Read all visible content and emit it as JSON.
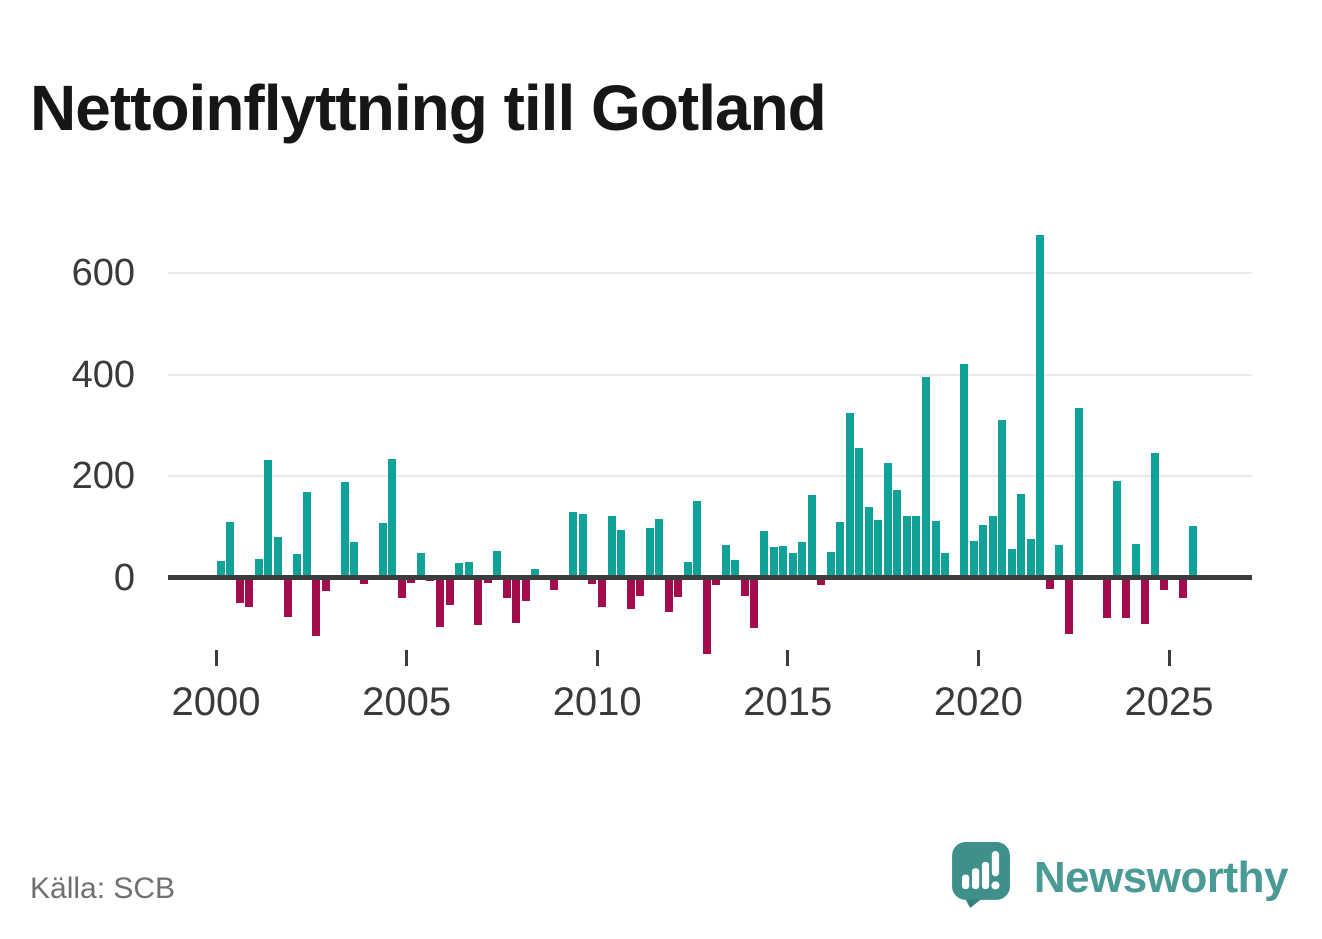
{
  "header": {
    "title": "Nettoinflyttning till Gotland"
  },
  "footer": {
    "source": "Källa: SCB",
    "brand": "Newsworthy"
  },
  "chart_data": {
    "type": "bar",
    "title": "Nettoinflyttning till Gotland",
    "frequency": "quarterly",
    "start_period": "2000 Q1",
    "end_period": "2025 Q3",
    "x_tick_labels": [
      "2000",
      "2005",
      "2010",
      "2015",
      "2020",
      "2025"
    ],
    "y_tick_labels": [
      "0",
      "200",
      "400",
      "600"
    ],
    "y_ticks": [
      0,
      200,
      400,
      600
    ],
    "ylim": [
      -160,
      700
    ],
    "grid": "horizontal",
    "positive_color": "#10a299",
    "negative_color": "#a30d4e",
    "values": [
      33,
      110,
      -50,
      -57,
      37,
      233,
      81,
      -77,
      47,
      170,
      -115,
      -25,
      0,
      188,
      70,
      -12,
      0,
      108,
      235,
      -40,
      -9,
      49,
      -5,
      -96,
      -53,
      29,
      32,
      -92,
      -9,
      53,
      -40,
      -88,
      -46,
      18,
      0,
      -23,
      0,
      130,
      126,
      -11,
      -57,
      122,
      95,
      -60,
      -35,
      99,
      117,
      -66,
      -38,
      31,
      152,
      -150,
      -13,
      65,
      36,
      -36,
      -98,
      93,
      60,
      62,
      49,
      70,
      164,
      -14,
      52,
      111,
      325,
      255,
      139,
      114,
      227,
      174,
      122,
      122,
      395,
      113,
      49,
      0,
      420,
      72,
      105,
      121,
      310,
      57,
      165,
      76,
      675,
      -21,
      65,
      -110,
      335,
      0,
      0,
      -78,
      190,
      -79,
      67,
      -91,
      245,
      -23,
      0,
      -40,
      102
    ]
  },
  "logo": {
    "name": "newsworthy-logo"
  }
}
